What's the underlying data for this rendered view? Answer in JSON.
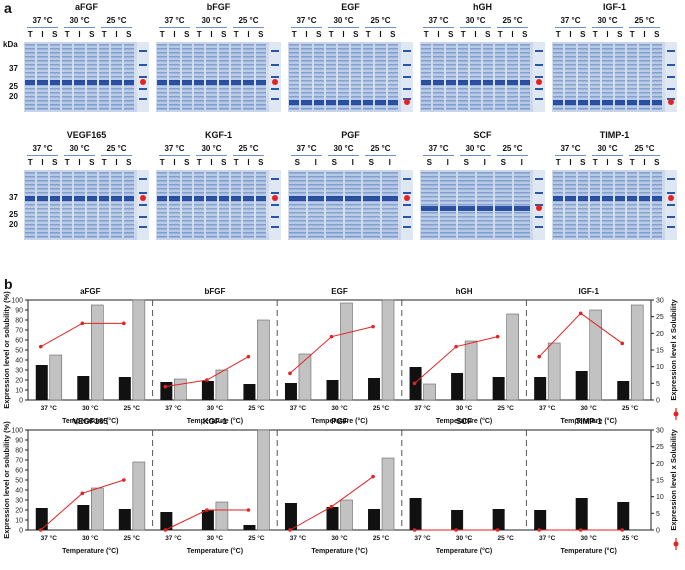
{
  "panel_a_label": "a",
  "panel_b_label": "b",
  "kda": {
    "unit": "kDa",
    "marks": [
      "37",
      "25",
      "20"
    ]
  },
  "temperature_labels": [
    "37 °C",
    "30 °C",
    "25 °C"
  ],
  "gels_row1": [
    {
      "name": "aFGF",
      "lanes": [
        "T",
        "I",
        "S",
        "T",
        "I",
        "S",
        "T",
        "I",
        "S"
      ]
    },
    {
      "name": "bFGF",
      "lanes": [
        "T",
        "I",
        "S",
        "T",
        "I",
        "S",
        "T",
        "I",
        "S"
      ]
    },
    {
      "name": "EGF",
      "lanes": [
        "T",
        "I",
        "S",
        "T",
        "I",
        "S",
        "T",
        "I",
        "S"
      ]
    },
    {
      "name": "hGH",
      "lanes": [
        "T",
        "I",
        "S",
        "T",
        "I",
        "S",
        "T",
        "I",
        "S"
      ]
    },
    {
      "name": "IGF-1",
      "lanes": [
        "T",
        "I",
        "S",
        "T",
        "I",
        "S",
        "T",
        "I",
        "S"
      ]
    }
  ],
  "gels_row2": [
    {
      "name": "VEGF165",
      "lanes": [
        "T",
        "I",
        "S",
        "T",
        "I",
        "S",
        "T",
        "I",
        "S"
      ]
    },
    {
      "name": "KGF-1",
      "lanes": [
        "T",
        "I",
        "S",
        "T",
        "I",
        "S",
        "T",
        "I",
        "S"
      ]
    },
    {
      "name": "PGF",
      "lanes": [
        "S",
        "I",
        "S",
        "I",
        "S",
        "I"
      ]
    },
    {
      "name": "SCF",
      "lanes": [
        "S",
        "I",
        "S",
        "I",
        "S",
        "I"
      ]
    },
    {
      "name": "TIMP-1",
      "lanes": [
        "T",
        "I",
        "S",
        "T",
        "I",
        "S",
        "T",
        "I",
        "S"
      ]
    }
  ],
  "chart_data": {
    "type": "bar",
    "xlabel": "Temperature (°C)",
    "ylabel": "Expression level or solubility (%)",
    "ylabel_right": "Expression level x Solubility",
    "categories": [
      "37 °C",
      "30 °C",
      "25 °C"
    ],
    "ylim": [
      0,
      100
    ],
    "ylim_right": [
      0,
      30
    ],
    "yticks": [
      "0",
      "10",
      "20",
      "30",
      "40",
      "50",
      "60",
      "70",
      "80",
      "90",
      "100"
    ],
    "yticks_right": [
      "0",
      "5",
      "10",
      "15",
      "20",
      "25",
      "30"
    ],
    "series_names": [
      "Expression level",
      "Solubility",
      "Expression level x Solubility"
    ],
    "panels": [
      {
        "name": "aFGF",
        "expression": [
          35,
          24,
          23
        ],
        "solubility": [
          45,
          95,
          100
        ],
        "product": [
          16,
          23,
          23
        ]
      },
      {
        "name": "bFGF",
        "expression": [
          18,
          19,
          16
        ],
        "solubility": [
          21,
          30,
          80
        ],
        "product": [
          4,
          6,
          13
        ]
      },
      {
        "name": "EGF",
        "expression": [
          17,
          20,
          22
        ],
        "solubility": [
          46,
          97,
          100
        ],
        "product": [
          8,
          19,
          22
        ]
      },
      {
        "name": "hGH",
        "expression": [
          33,
          27,
          23
        ],
        "solubility": [
          16,
          59,
          86
        ],
        "product": [
          5,
          16,
          19
        ]
      },
      {
        "name": "IGF-1",
        "expression": [
          23,
          29,
          19
        ],
        "solubility": [
          57,
          90,
          95
        ],
        "product": [
          13,
          26,
          17
        ]
      },
      {
        "name": "VEGF165",
        "expression": [
          22,
          25,
          21
        ],
        "solubility": [
          0,
          42,
          68
        ],
        "product": [
          0,
          11,
          15
        ]
      },
      {
        "name": "KGF-1",
        "expression": [
          18,
          20,
          5
        ],
        "solubility": [
          0,
          28,
          100
        ],
        "product": [
          0,
          6,
          6
        ]
      },
      {
        "name": "PGF",
        "expression": [
          27,
          23,
          21
        ],
        "solubility": [
          0,
          30,
          72
        ],
        "product": [
          0,
          7,
          16
        ]
      },
      {
        "name": "SCF",
        "expression": [
          32,
          20,
          21
        ],
        "solubility": [
          0,
          0,
          0
        ],
        "product": [
          0,
          0,
          0
        ]
      },
      {
        "name": "TIMP-1",
        "expression": [
          20,
          32,
          28
        ],
        "solubility": [
          0,
          0,
          0
        ],
        "product": [
          0,
          0,
          0
        ]
      }
    ]
  }
}
